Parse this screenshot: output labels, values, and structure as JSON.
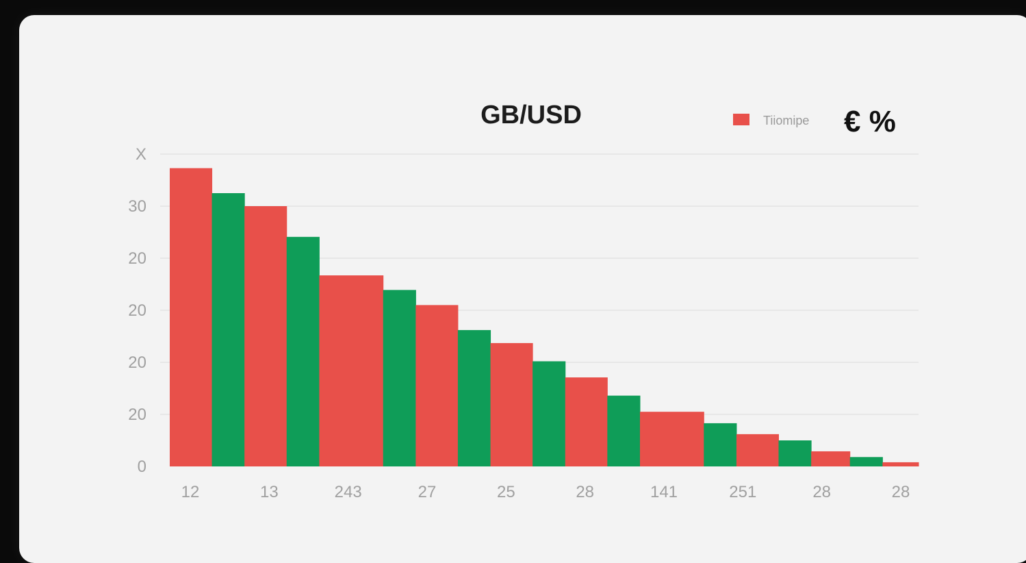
{
  "chart_data": {
    "type": "bar",
    "title": "GB/USD",
    "legend": {
      "label": "Tiiomipe",
      "symbols": "€ %",
      "placement": "top-right",
      "swatch_color": "#e8504a"
    },
    "colors": {
      "red": "#e8504a",
      "green": "#0f9d58"
    },
    "y_tick_labels": [
      "0",
      "20",
      "20",
      "20",
      "20",
      "30",
      "X"
    ],
    "x_tick_labels": [
      "12",
      "13",
      "243",
      "27",
      "25",
      "28",
      "141",
      "251",
      "28",
      "28"
    ],
    "grid": true,
    "bars": [
      {
        "value": 57.3,
        "color": "red"
      },
      {
        "value": 52.5,
        "color": "green"
      },
      {
        "value": 50.0,
        "color": "red"
      },
      {
        "value": 44.1,
        "color": "green"
      },
      {
        "value": 36.7,
        "color": "red"
      },
      {
        "value": 33.9,
        "color": "green"
      },
      {
        "value": 31.0,
        "color": "red"
      },
      {
        "value": 26.2,
        "color": "green"
      },
      {
        "value": 23.7,
        "color": "red"
      },
      {
        "value": 20.2,
        "color": "green"
      },
      {
        "value": 17.1,
        "color": "red"
      },
      {
        "value": 13.6,
        "color": "green"
      },
      {
        "value": 10.5,
        "color": "red"
      },
      {
        "value": 8.3,
        "color": "green"
      },
      {
        "value": 6.2,
        "color": "red"
      },
      {
        "value": 5.0,
        "color": "green"
      },
      {
        "value": 2.9,
        "color": "red"
      },
      {
        "value": 1.8,
        "color": "green"
      },
      {
        "value": 0.8,
        "color": "red"
      }
    ],
    "ylim": [
      0,
      60
    ],
    "xlabel": "",
    "ylabel": ""
  }
}
